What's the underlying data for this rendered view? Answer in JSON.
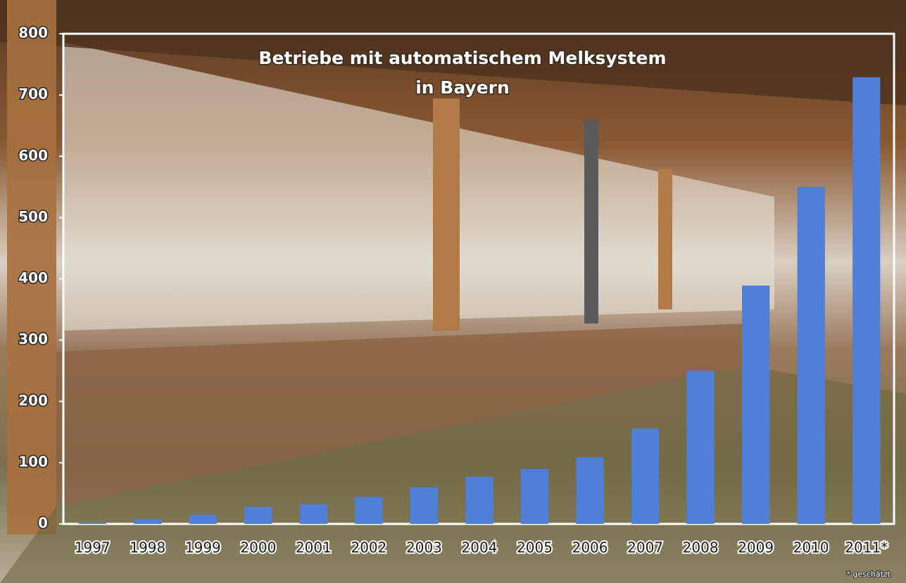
{
  "chart_data": {
    "type": "bar",
    "title_lines": [
      "Betriebe mit automatischem Melksystem",
      "in Bayern"
    ],
    "categories": [
      "1997",
      "1998",
      "1999",
      "2000",
      "2001",
      "2002",
      "2003",
      "2004",
      "2005",
      "2006",
      "2007",
      "2008",
      "2009",
      "2010",
      "2011*"
    ],
    "values": [
      2,
      8,
      15,
      28,
      32,
      44,
      60,
      77,
      90,
      109,
      156,
      250,
      389,
      550,
      729
    ],
    "color": "#4f7fd6",
    "ylim": [
      0,
      800
    ],
    "yticks": [
      0,
      100,
      200,
      300,
      400,
      500,
      600,
      700,
      800
    ],
    "footnote": "* geschätzt"
  }
}
